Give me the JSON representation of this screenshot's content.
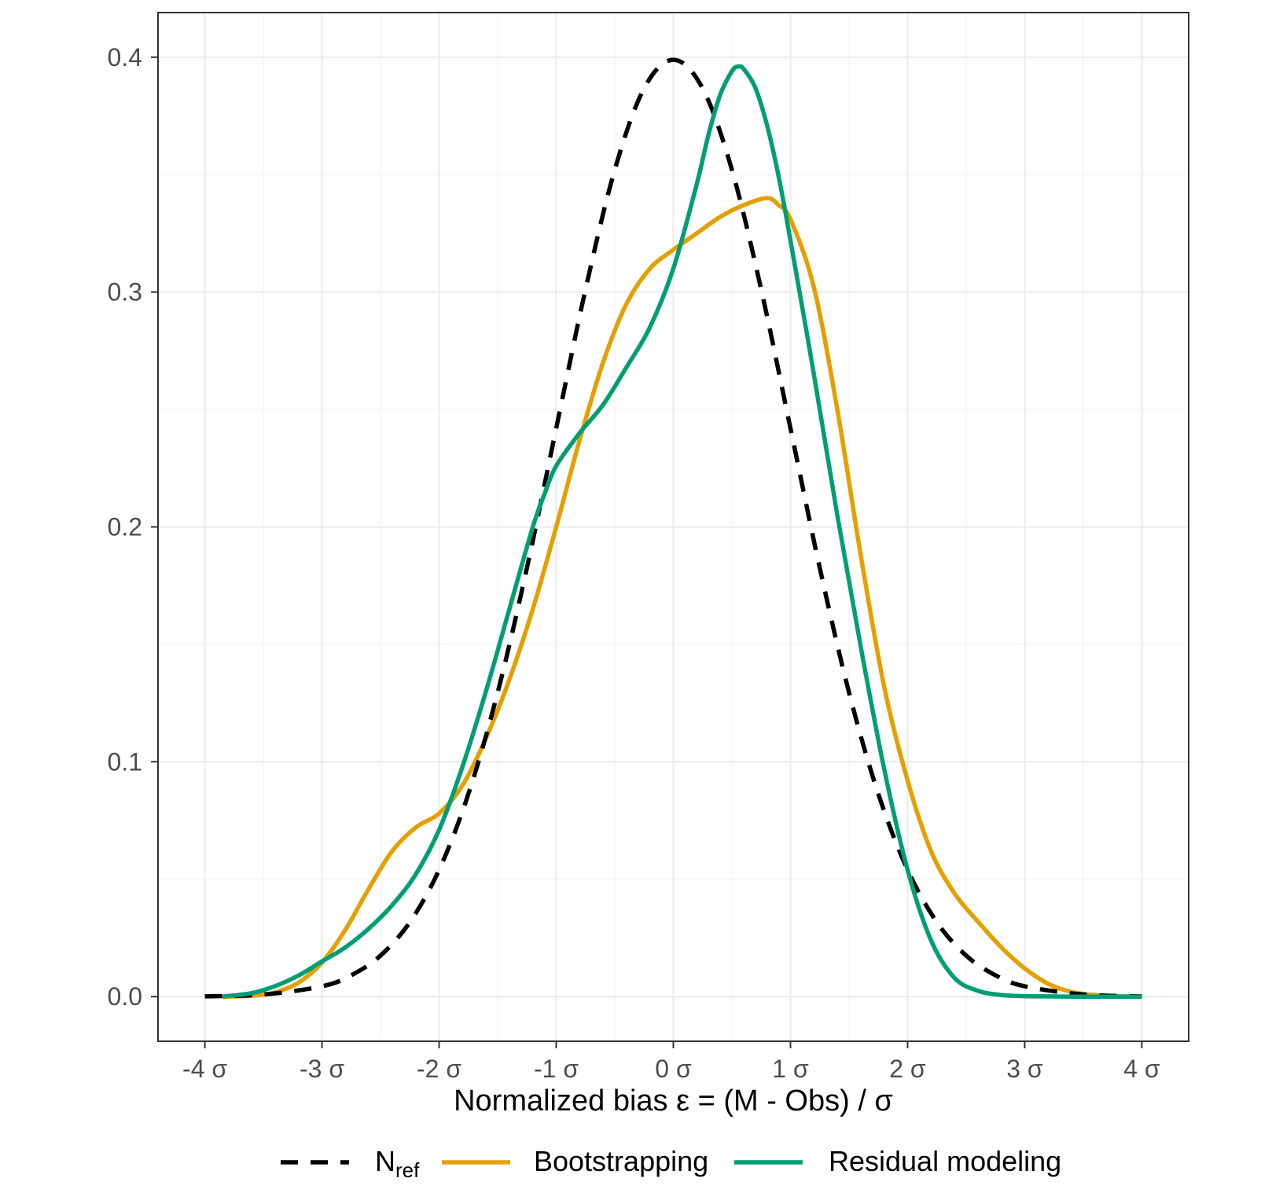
{
  "chart_data": {
    "type": "line",
    "title": "",
    "xlabel": "Normalized bias ε = (M - Obs) / σ",
    "ylabel": "",
    "xlim": [
      -4.4,
      4.4
    ],
    "ylim": [
      -0.019,
      0.419
    ],
    "x_ticks": [
      -4,
      -3,
      -2,
      -1,
      0,
      1,
      2,
      3,
      4
    ],
    "x_tick_labels": [
      "-4 σ",
      "-3 σ",
      "-2 σ",
      "-1 σ",
      "0 σ",
      "1 σ",
      "2 σ",
      "3 σ",
      "4 σ"
    ],
    "y_ticks": [
      0.0,
      0.1,
      0.2,
      0.3,
      0.4
    ],
    "y_tick_labels": [
      "0.0",
      "0.1",
      "0.2",
      "0.3",
      "0.4"
    ],
    "grid": true,
    "legend_position": "bottom",
    "legend": [
      {
        "label": "N",
        "subscript": "ref",
        "color": "#000000",
        "dash": "dashed"
      },
      {
        "label": "Bootstrapping",
        "color": "#E69F00",
        "dash": "solid"
      },
      {
        "label": "Residual modeling",
        "color": "#009E73",
        "dash": "solid"
      }
    ],
    "series": [
      {
        "name": "Nref",
        "color": "#000000",
        "dash": "dashed",
        "x": [
          -4.0,
          -3.5,
          -3.0,
          -2.75,
          -2.5,
          -2.25,
          -2.0,
          -1.75,
          -1.5,
          -1.25,
          -1.0,
          -0.75,
          -0.5,
          -0.25,
          0.0,
          0.25,
          0.5,
          0.75,
          1.0,
          1.25,
          1.5,
          1.75,
          2.0,
          2.25,
          2.5,
          2.75,
          3.0,
          3.5,
          4.0
        ],
        "y": [
          0.0001,
          0.0009,
          0.0044,
          0.0091,
          0.0175,
          0.0317,
          0.054,
          0.0863,
          0.1295,
          0.1826,
          0.242,
          0.3011,
          0.3521,
          0.3867,
          0.3989,
          0.3867,
          0.3521,
          0.3011,
          0.242,
          0.1826,
          0.1295,
          0.0863,
          0.054,
          0.0317,
          0.0175,
          0.0091,
          0.0044,
          0.0009,
          0.0001
        ]
      },
      {
        "name": "Bootstrapping",
        "color": "#E69F00",
        "dash": "solid",
        "x": [
          -3.85,
          -3.6,
          -3.4,
          -3.2,
          -3.0,
          -2.8,
          -2.6,
          -2.4,
          -2.2,
          -2.0,
          -1.8,
          -1.6,
          -1.4,
          -1.2,
          -1.0,
          -0.8,
          -0.6,
          -0.4,
          -0.2,
          0.0,
          0.2,
          0.4,
          0.6,
          0.8,
          0.9,
          1.0,
          1.2,
          1.4,
          1.6,
          1.8,
          2.0,
          2.2,
          2.4,
          2.6,
          2.8,
          3.0,
          3.2,
          3.4,
          3.6,
          3.8,
          4.0
        ],
        "y": [
          0.0,
          0.0004,
          0.0018,
          0.006,
          0.0145,
          0.0285,
          0.046,
          0.062,
          0.072,
          0.078,
          0.09,
          0.11,
          0.135,
          0.165,
          0.2,
          0.237,
          0.27,
          0.295,
          0.31,
          0.318,
          0.325,
          0.332,
          0.337,
          0.34,
          0.337,
          0.331,
          0.302,
          0.25,
          0.188,
          0.132,
          0.092,
          0.062,
          0.044,
          0.032,
          0.021,
          0.012,
          0.0055,
          0.002,
          0.0007,
          0.0002,
          0.0
        ]
      },
      {
        "name": "Residual modeling",
        "color": "#009E73",
        "dash": "solid",
        "x": [
          -3.85,
          -3.6,
          -3.4,
          -3.2,
          -3.0,
          -2.8,
          -2.6,
          -2.4,
          -2.2,
          -2.0,
          -1.8,
          -1.6,
          -1.4,
          -1.2,
          -1.1,
          -1.0,
          -0.8,
          -0.6,
          -0.4,
          -0.2,
          0.0,
          0.2,
          0.3,
          0.4,
          0.5,
          0.55,
          0.6,
          0.7,
          0.8,
          0.9,
          1.0,
          1.2,
          1.4,
          1.6,
          1.8,
          2.0,
          2.2,
          2.4,
          2.6,
          2.8,
          3.0,
          3.2,
          3.4,
          3.6,
          3.8,
          4.0
        ],
        "y": [
          0.0,
          0.0015,
          0.0045,
          0.009,
          0.015,
          0.021,
          0.029,
          0.039,
          0.052,
          0.071,
          0.098,
          0.13,
          0.165,
          0.2,
          0.214,
          0.226,
          0.24,
          0.252,
          0.268,
          0.285,
          0.31,
          0.346,
          0.367,
          0.384,
          0.394,
          0.396,
          0.395,
          0.387,
          0.371,
          0.349,
          0.322,
          0.265,
          0.205,
          0.149,
          0.097,
          0.054,
          0.024,
          0.008,
          0.0025,
          0.0007,
          0.0002,
          0.0001,
          0.0,
          0.0,
          0.0,
          0.0
        ]
      }
    ]
  }
}
